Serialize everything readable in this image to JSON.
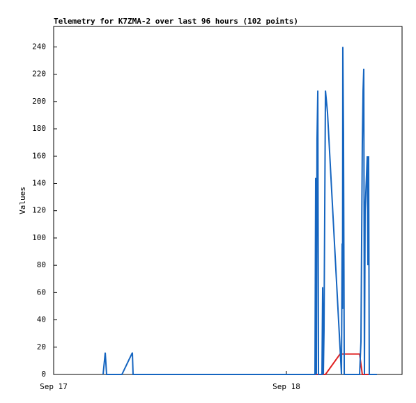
{
  "chart_data": {
    "type": "line",
    "title": "Telemetry for K7ZMA-2 over last 96 hours (102 points)",
    "y_label": "Values",
    "xlim": [
      0,
      35.93
    ],
    "xticks": [
      {
        "value": 0,
        "label": "Sep 17"
      },
      {
        "value": 24,
        "label": "Sep 18"
      }
    ],
    "ylim": [
      0,
      255
    ],
    "yticks": [
      0,
      20,
      40,
      60,
      80,
      100,
      120,
      140,
      160,
      180,
      200,
      220,
      240
    ],
    "series": [
      {
        "color": "#1565c0",
        "x": [
          5.1,
          5.32,
          5.46,
          7.04,
          8.12,
          8.19,
          26.95,
          27.02,
          27.09,
          27.16,
          27.24,
          27.31,
          27.67,
          27.74,
          27.81,
          27.88,
          28.03,
          28.24,
          29.68,
          29.75,
          29.79,
          29.82,
          29.89,
          29.97,
          31.55,
          31.69,
          31.83,
          31.91,
          31.98,
          32.05,
          32.12,
          32.34,
          32.41,
          32.48,
          32.55,
          33.34
        ],
        "values": [
          0,
          16,
          0,
          0,
          16,
          0,
          0,
          144,
          0,
          172,
          208,
          0,
          0,
          64,
          0,
          32,
          208,
          192,
          0,
          96,
          48,
          240,
          176,
          0,
          0,
          24,
          168,
          208,
          224,
          0,
          120,
          160,
          80,
          160,
          0,
          0
        ]
      },
      {
        "color": "#e02020",
        "x": [
          26.95,
          28.03,
          29.54,
          31.55,
          31.83,
          33.34
        ],
        "values": [
          0,
          0,
          15,
          15,
          0,
          0
        ]
      }
    ]
  }
}
